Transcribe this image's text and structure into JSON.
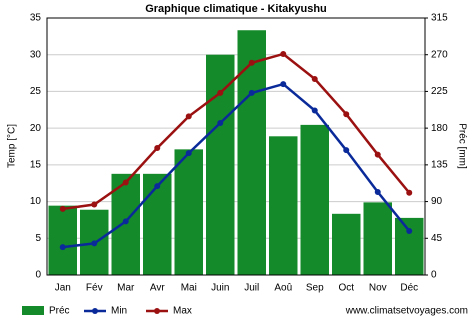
{
  "chart_data": {
    "type": "bar-line",
    "title": "Graphique climatique - Kitakyushu",
    "y_label": "Temp [°C]",
    "y2_label": "Préc [mm]",
    "source": "www.climatsetvoyages.com",
    "categories": [
      "Jan",
      "Fév",
      "Mar",
      "Avr",
      "Mai",
      "Juin",
      "Juil",
      "Aoû",
      "Sep",
      "Oct",
      "Nov",
      "Déc"
    ],
    "series": [
      {
        "name": "Préc",
        "type": "bar",
        "axis": "y2",
        "color": "#158a2a",
        "values": [
          85,
          80,
          124,
          124,
          154,
          270,
          300,
          170,
          184,
          75,
          89,
          70
        ]
      },
      {
        "name": "Min",
        "type": "line",
        "color": "#0a2a9a",
        "values": [
          3.8,
          4.3,
          7.3,
          12.1,
          16.6,
          20.7,
          24.8,
          26,
          22.4,
          17,
          11.3,
          6
        ]
      },
      {
        "name": "Max",
        "type": "line",
        "color": "#9b1010",
        "values": [
          9,
          9.6,
          12.6,
          17.3,
          21.6,
          24.8,
          28.9,
          30.1,
          26.7,
          21.9,
          16.4,
          11.2
        ]
      }
    ],
    "ylim": [
      0,
      35
    ],
    "yticks": [
      0,
      5,
      10,
      15,
      20,
      25,
      30,
      35
    ],
    "y2lim": [
      0,
      315
    ],
    "y2ticks": [
      0,
      45,
      90,
      135,
      180,
      225,
      270,
      315
    ],
    "grid": true
  }
}
